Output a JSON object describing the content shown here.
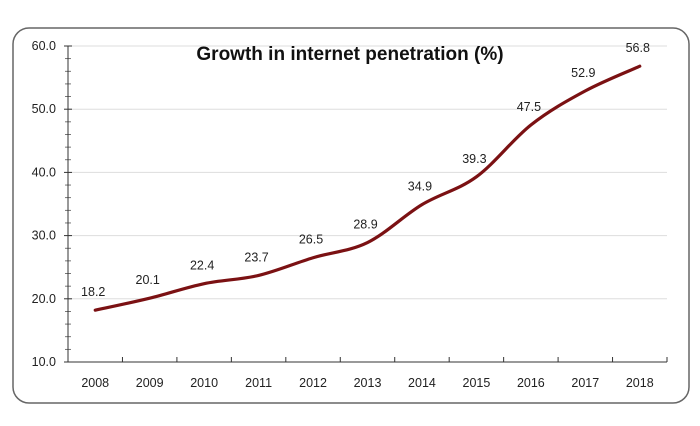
{
  "chart_data": {
    "type": "line",
    "title": "Growth in internet penetration (%)",
    "xlabel": "",
    "ylabel": "",
    "categories": [
      "2008",
      "2009",
      "2010",
      "2011",
      "2012",
      "2013",
      "2014",
      "2015",
      "2016",
      "2017",
      "2018"
    ],
    "values": [
      18.2,
      20.1,
      22.4,
      23.7,
      26.5,
      28.9,
      34.9,
      39.3,
      47.5,
      52.9,
      56.8
    ],
    "data_labels": [
      "18.2",
      "20.1",
      "22.4",
      "23.7",
      "26.5",
      "28.9",
      "34.9",
      "39.3",
      "47.5",
      "52.9",
      "56.8"
    ],
    "ylim": [
      10,
      60
    ],
    "yticks": [
      "10.0",
      "20.0",
      "30.0",
      "40.0",
      "50.0",
      "60.0"
    ],
    "grid": true,
    "smooth": true,
    "legend": "none",
    "line_color": "#7b1113"
  }
}
